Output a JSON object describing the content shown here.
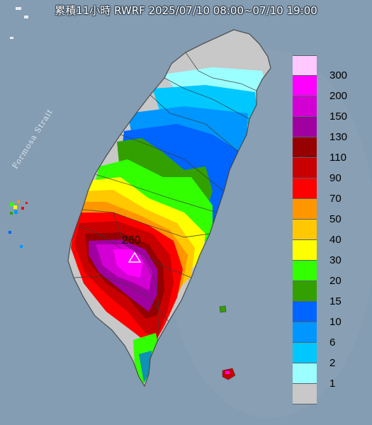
{
  "header": {
    "title": "累積11小時 RWRF 2025/07/10 08:00~07/10 19:00"
  },
  "map": {
    "water_label": "Formosa Strait",
    "peak": {
      "value": "260",
      "marker": "triangle-marker-icon"
    },
    "colors": {
      "sea": "#7f97ad",
      "land_nodata": "#c8c8c8",
      "border": "#3c3c3c"
    }
  },
  "legend": {
    "levels": [
      {
        "label": "300",
        "color": "#ffc8ff"
      },
      {
        "label": "200",
        "color": "#ff00ff"
      },
      {
        "label": "150",
        "color": "#d200d2"
      },
      {
        "label": "130",
        "color": "#a000a0"
      },
      {
        "label": "110",
        "color": "#960000"
      },
      {
        "label": "90",
        "color": "#c80000"
      },
      {
        "label": "70",
        "color": "#ff0000"
      },
      {
        "label": "50",
        "color": "#ff9600"
      },
      {
        "label": "40",
        "color": "#ffc800"
      },
      {
        "label": "30",
        "color": "#ffff00"
      },
      {
        "label": "20",
        "color": "#32ff00"
      },
      {
        "label": "15",
        "color": "#32a000"
      },
      {
        "label": "10",
        "color": "#0064ff"
      },
      {
        "label": "6",
        "color": "#0096ff"
      },
      {
        "label": "2",
        "color": "#00c8ff"
      },
      {
        "label": "1",
        "color": "#9bffff"
      },
      {
        "label": "",
        "color": "#c8c8c8"
      }
    ]
  }
}
